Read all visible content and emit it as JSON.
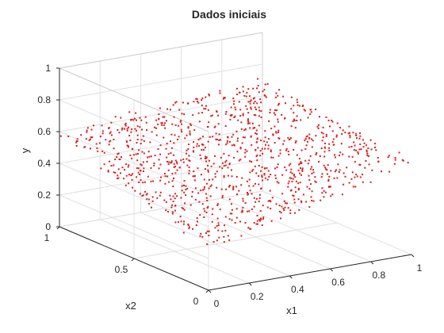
{
  "chart_data": {
    "type": "scatter",
    "title": "Dados iniciais",
    "xlabel": "x1",
    "ylabel": "x2",
    "zlabel": "y",
    "xlim": [
      0,
      1
    ],
    "ylim": [
      0,
      1
    ],
    "zlim": [
      0,
      1
    ],
    "x_ticks": [
      "0",
      "0.2",
      "0.4",
      "0.6",
      "0.8",
      "1"
    ],
    "x_tick_values": [
      0,
      0.2,
      0.4,
      0.6,
      0.8,
      1
    ],
    "y_ticks": [
      "0",
      "0.5",
      "1"
    ],
    "y_tick_values": [
      0,
      0.5,
      1
    ],
    "z_ticks": [
      "0",
      "0.2",
      "0.4",
      "0.6",
      "0.8",
      "1"
    ],
    "z_tick_values": [
      0,
      0.2,
      0.4,
      0.6,
      0.8,
      1
    ],
    "grid": true,
    "marker_color": "#d62020",
    "point_count": 1100,
    "surface": "y = 0.26 + 0.64*(x1 + x2)/2 - 0.2*x1*x2, points sampled uniformly over the unit square with small noise"
  }
}
